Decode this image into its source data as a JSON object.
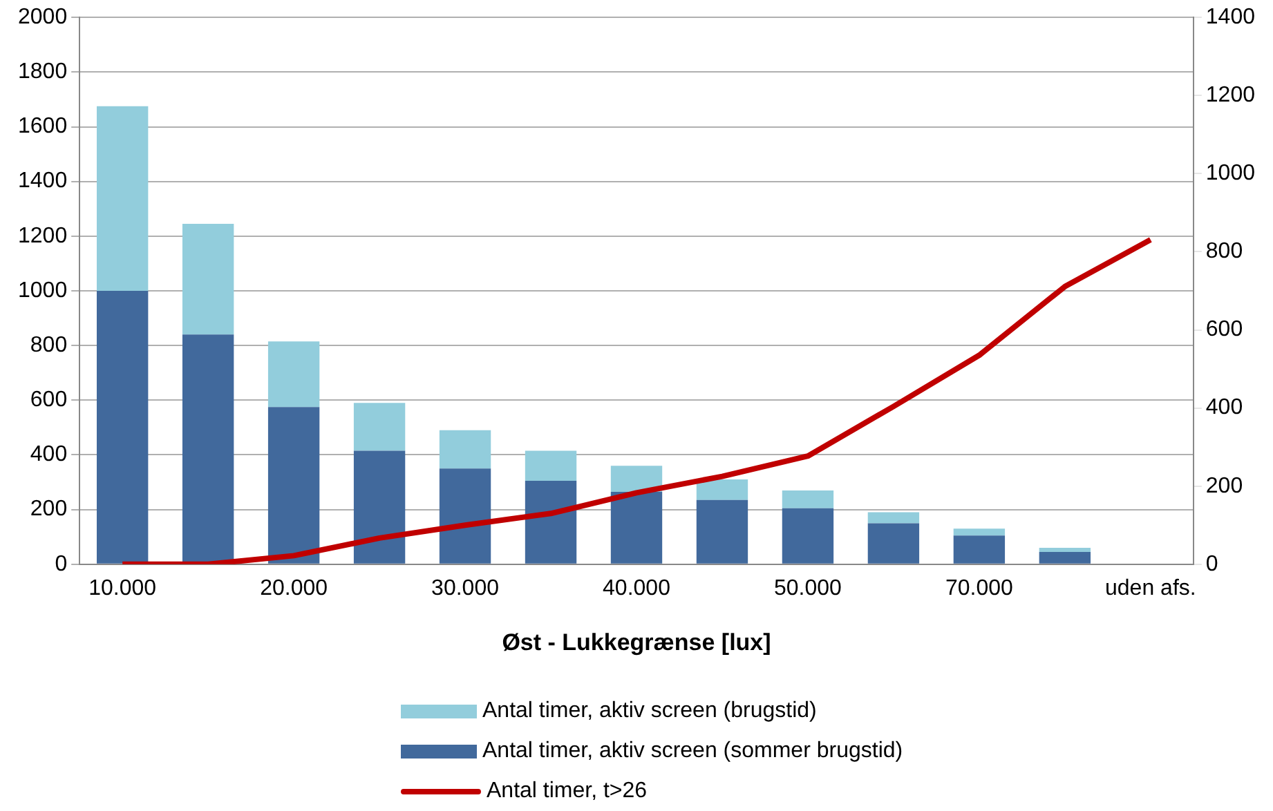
{
  "chart_data": {
    "type": "bar",
    "stacked": true,
    "xlabel": "Øst - Lukkegrænse [lux]",
    "categories": [
      "10.000",
      null,
      "20.000",
      null,
      "30.000",
      null,
      "40.000",
      null,
      "50.000",
      null,
      "70.000",
      null,
      "uden afs."
    ],
    "series": [
      {
        "name": "Antal timer, aktiv screen (sommer brugstid)",
        "color": "#41699c",
        "values": [
          1000,
          840,
          575,
          415,
          350,
          305,
          265,
          235,
          205,
          150,
          105,
          45,
          null
        ]
      },
      {
        "name": "Antal timer, aktiv screen (brugstid)",
        "color": "#92cddc",
        "values": [
          675,
          405,
          240,
          175,
          140,
          110,
          95,
          75,
          65,
          40,
          25,
          15,
          null
        ]
      },
      {
        "name": "Antal timer, t>26",
        "type": "line",
        "axis": "y2",
        "color": "#c00000",
        "marker": "none",
        "line_style": "solid",
        "values": [
          0,
          0,
          22,
          67,
          100,
          130,
          183,
          225,
          277,
          404,
          535,
          711,
          831
        ]
      }
    ],
    "ylim": [
      0,
      2000
    ],
    "yticks": [
      0,
      200,
      400,
      600,
      800,
      1000,
      1200,
      1400,
      1600,
      1800,
      2000
    ],
    "y2lim": [
      0,
      1400
    ],
    "y2ticks": [
      0,
      200,
      400,
      600,
      800,
      1000,
      1200,
      1400
    ],
    "grid": "y",
    "legend": "bottom"
  }
}
